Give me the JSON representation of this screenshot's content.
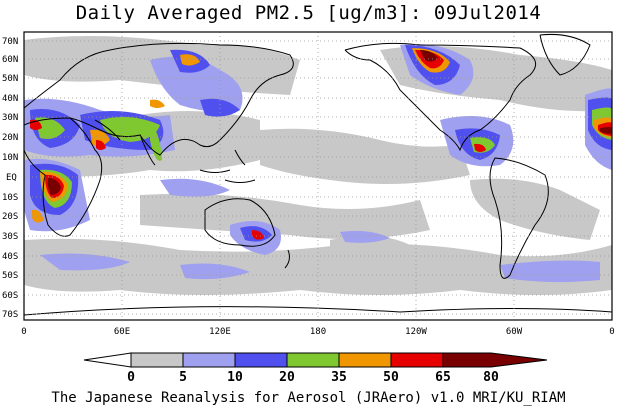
{
  "title": "Daily Averaged PM2.5 [ug/m3]: 09Jul2014",
  "footer": "The Japanese Reanalysis for Aerosol (JRAero) v1.0 MRI/KU_RIAM",
  "map": {
    "lat_labels": [
      "70N",
      "60N",
      "50N",
      "40N",
      "30N",
      "20N",
      "10N",
      "EQ",
      "10S",
      "20S",
      "30S",
      "40S",
      "50S",
      "60S",
      "70S"
    ],
    "lon_labels": [
      "0",
      "60E",
      "120E",
      "180",
      "120W",
      "60W",
      "0"
    ]
  },
  "legend": {
    "ticks": [
      "0",
      "5",
      "10",
      "20",
      "35",
      "50",
      "65",
      "80"
    ],
    "colors": {
      "c0": "#ffffff",
      "c1": "#c8c8c8",
      "c2": "#a0a0f0",
      "c3": "#5050ee",
      "c4": "#80c830",
      "c5": "#f09600",
      "c6": "#e60000",
      "c7": "#780000"
    }
  }
}
